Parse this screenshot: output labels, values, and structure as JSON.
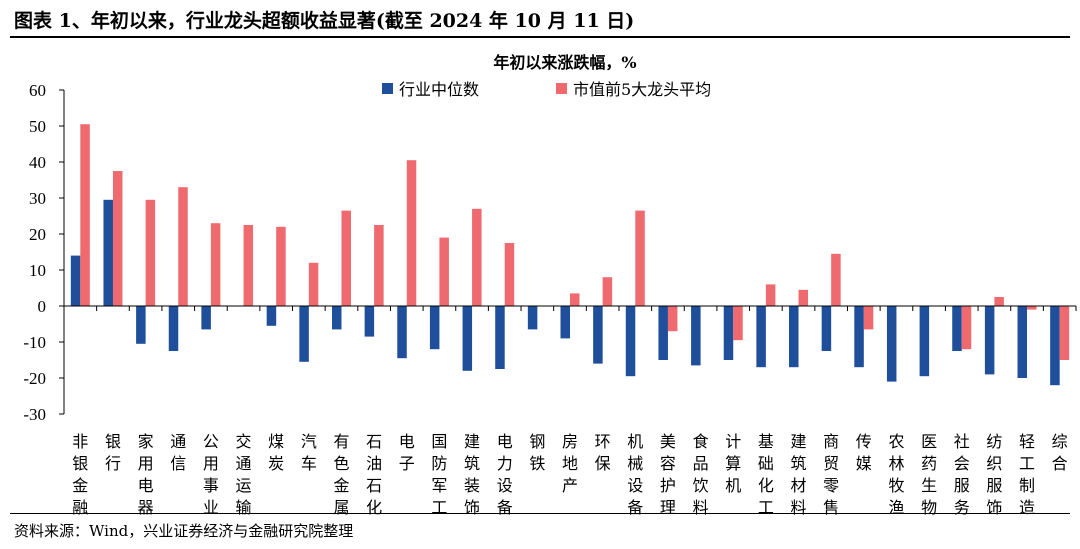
{
  "figure": {
    "title": "图表 1、年初以来，行业龙头超额收益显著(截至 2024 年 10 月 11 日)",
    "source": "资料来源：Wind，兴业证券经济与金融研究院整理"
  },
  "colors": {
    "median": "#1F4E9A",
    "top5": "#EE6A6E",
    "axis": "#000000"
  },
  "chart_data": {
    "type": "bar",
    "title": "年初以来涨跌幅，%",
    "xlabel": "",
    "ylabel": "",
    "ylim": [
      -30,
      60
    ],
    "yticks": [
      60,
      50,
      40,
      30,
      20,
      10,
      0,
      -10,
      -20,
      -30
    ],
    "grid": false,
    "legend_position": "top",
    "categories": [
      "非银金融",
      "银行",
      "家用电器",
      "通信",
      "公用事业",
      "交通运输",
      "煤炭",
      "汽车",
      "有色金属",
      "石油石化",
      "电子",
      "国防军工",
      "建筑装饰",
      "电力设备",
      "钢铁",
      "房地产",
      "环保",
      "机械设备",
      "美容护理",
      "食品饮料",
      "计算机",
      "基础化工",
      "建筑材料",
      "商贸零售",
      "传媒",
      "农林牧渔",
      "医药生物",
      "社会服务",
      "纺织服饰",
      "轻工制造",
      "综合"
    ],
    "series": [
      {
        "name": "行业中位数",
        "values": [
          14,
          29.5,
          -10.5,
          -12.5,
          -6.5,
          0,
          -5.5,
          -15.5,
          -6.5,
          -8.5,
          -14.5,
          -12,
          -18,
          -17.5,
          -6.5,
          -9,
          -16,
          -19.5,
          -15,
          -16.5,
          -15,
          -17,
          -17,
          -12.5,
          -17,
          -21,
          -19.5,
          -12.5,
          -19,
          -20,
          -22
        ]
      },
      {
        "name": "市值前5大龙头平均",
        "values": [
          50.5,
          37.5,
          29.5,
          33,
          23,
          22.5,
          22,
          12,
          26.5,
          22.5,
          40.5,
          19,
          27,
          17.5,
          0,
          3.5,
          8,
          26.5,
          -7,
          0,
          -9.5,
          6,
          4.5,
          14.5,
          -6.5,
          0,
          0,
          -12,
          2.5,
          -1,
          -15
        ]
      }
    ]
  }
}
